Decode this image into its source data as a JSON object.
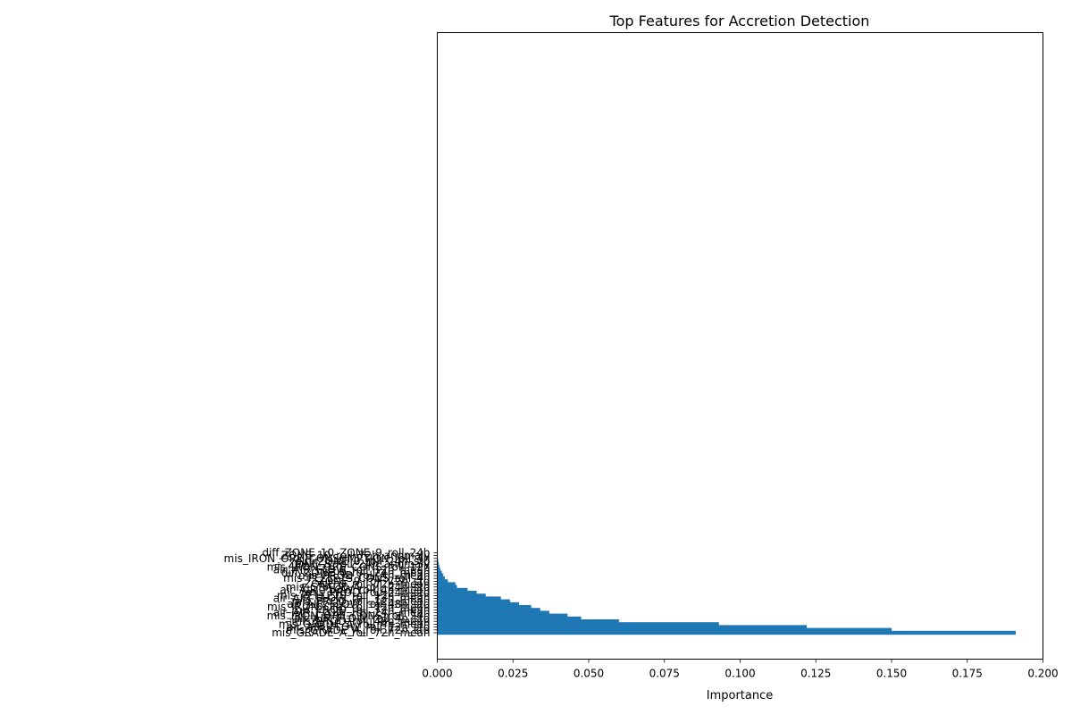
{
  "chart_data": {
    "type": "bar",
    "orientation": "horizontal",
    "title": "Top Features for Accretion Detection",
    "xlabel": "Importance",
    "ylabel": "",
    "xlim": [
      0,
      0.2
    ],
    "xticks": [
      "0.000",
      "0.025",
      "0.050",
      "0.075",
      "0.100",
      "0.125",
      "0.150",
      "0.175",
      "0.200"
    ],
    "grid": false,
    "bar_color": "#1f77b4",
    "categories": [
      "mis_GRADE_A_roll_72h_mean",
      "mis_GRADE_A_roll_72h_std",
      "air_AIR_FLOW_roll_12h_std",
      "mis_GRADE_A_roll_4h_mean",
      "mis_PROD_roll_48h_mean",
      "air_AIR_FLOW_roll_4h_std",
      "mis_IRON_ORE_CONS_roll_24h",
      "air_AIR_FLOW_roll_24h_mean",
      "mis_PROD_roll_72h_mean",
      "mis_IRON_ORE_roll_72h_mean",
      "air_AIR_FLOW_roll_48h_std",
      "mis_PROD_roll_12h_mean",
      "air_AIR_FLOW_roll_72h_mean",
      "mis_PELLETS_roll_12h_mean",
      "mis_PROD_roll_24h_std",
      "air_AIR_FLOW_roll_4h_mean",
      "mis_GRADE_A_roll_24h_std",
      "ZONE_9_roll_72h_mean",
      "ZONE_9_roll_72h_std",
      "mis_PELLETS_CONS_roll_4h",
      "mis_PROD_roll_4h_mean",
      "diff_ZONE_0_roll_24h_mean",
      "air_AIR_FLOW_roll_12h_mean",
      "mis_IRON_ORE_CONS_roll_12h",
      "ZONE_8_roll_24h_anomaly",
      "diff_ZONE_0_roll_24h_std",
      "mis_IRON_ORE_CONSUMPTION_roll_4h",
      "ZONE_10_roll_72h_anomaly",
      "diff_ZONE_10_ZONE_9_roll_24h"
    ],
    "values": [
      0.191,
      0.15,
      0.122,
      0.093,
      0.06,
      0.0475,
      0.043,
      0.037,
      0.034,
      0.031,
      0.027,
      0.024,
      0.021,
      0.016,
      0.013,
      0.01,
      0.0065,
      0.006,
      0.0035,
      0.0025,
      0.002,
      0.0015,
      0.001,
      0.0007,
      0.0005,
      0.0003,
      0.0002,
      0.0001,
      5e-05
    ]
  }
}
